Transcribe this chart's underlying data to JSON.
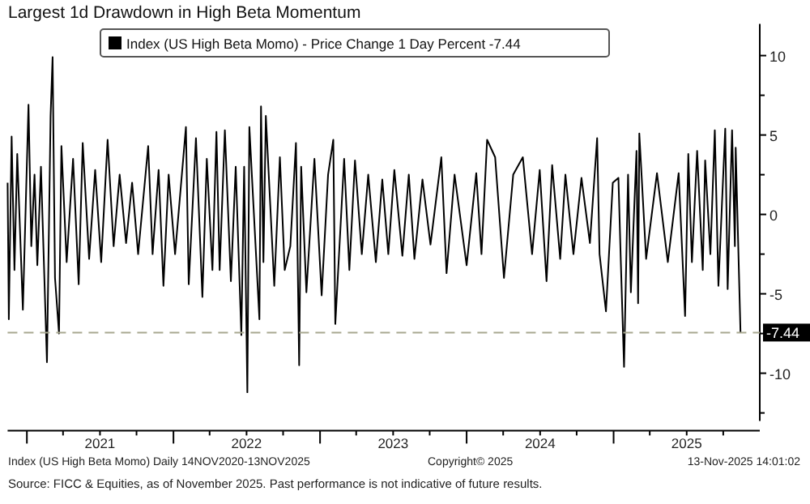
{
  "chart_data": {
    "type": "line",
    "title": "Largest 1d Drawdown in High Beta Momentum",
    "legend": "top left",
    "grid": false,
    "xlim": [
      "2020-11-14",
      "2025-12-31"
    ],
    "xticks": [
      {
        "value": "2021-01-01",
        "label": null
      },
      {
        "value": "2021-04-01",
        "label": null
      },
      {
        "value": "2021-07-02",
        "label": "2021"
      },
      {
        "value": "2021-10-01",
        "label": null
      },
      {
        "value": "2022-01-01",
        "label": null
      },
      {
        "value": "2022-04-01",
        "label": null
      },
      {
        "value": "2022-07-02",
        "label": "2022"
      },
      {
        "value": "2022-10-01",
        "label": null
      },
      {
        "value": "2023-01-01",
        "label": null
      },
      {
        "value": "2023-04-01",
        "label": null
      },
      {
        "value": "2023-07-02",
        "label": "2023"
      },
      {
        "value": "2023-10-01",
        "label": null
      },
      {
        "value": "2024-01-01",
        "label": null
      },
      {
        "value": "2024-04-01",
        "label": null
      },
      {
        "value": "2024-07-02",
        "label": "2024"
      },
      {
        "value": "2024-10-01",
        "label": null
      },
      {
        "value": "2025-01-01",
        "label": null
      },
      {
        "value": "2025-04-01",
        "label": null
      },
      {
        "value": "2025-07-02",
        "label": "2025"
      },
      {
        "value": "2025-10-01",
        "label": null
      }
    ],
    "ylim": [
      -13,
      12
    ],
    "yticks": [
      {
        "value": -12.5,
        "label": null
      },
      -10,
      {
        "value": -7.5,
        "label": null
      },
      -5,
      {
        "value": -2.5,
        "label": null
      },
      0,
      {
        "value": 2.5,
        "label": null
      },
      5,
      {
        "value": 7.5,
        "label": null
      },
      10
    ],
    "ref_lines": [
      {
        "axis": "y",
        "value": -7.44,
        "label": "-7.44",
        "color": "#a8a890",
        "line_style": "dashed"
      }
    ],
    "annotations": [
      "Index (US High Beta Momo) Daily 14NOV2020-13NOV2025",
      "Copyright© 2025",
      "13-Nov-2025 14:01:02",
      "Source: FICC & Equities, as of November 2025. Past performance is not indicative of future results."
    ],
    "series": [
      {
        "name": "Index (US High Beta Momo) - Price Change 1 Day Percent -7.44",
        "color": "#000000",
        "x": [
          "2020-11-14",
          "2020-11-17",
          "2020-11-24",
          "2020-12-01",
          "2020-12-08",
          "2020-12-22",
          "2021-01-05",
          "2021-01-12",
          "2021-01-20",
          "2021-01-27",
          "2021-02-05",
          "2021-02-20",
          "2021-03-01",
          "2021-03-06",
          "2021-03-12",
          "2021-03-22",
          "2021-03-28",
          "2021-04-10",
          "2021-04-26",
          "2021-05-10",
          "2021-05-20",
          "2021-06-05",
          "2021-06-20",
          "2021-07-05",
          "2021-07-21",
          "2021-08-05",
          "2021-08-20",
          "2021-09-05",
          "2021-09-20",
          "2021-10-05",
          "2021-10-30",
          "2021-11-10",
          "2021-11-25",
          "2021-12-07",
          "2021-12-20",
          "2022-01-05",
          "2022-02-01",
          "2022-02-08",
          "2022-02-26",
          "2022-03-14",
          "2022-03-25",
          "2022-04-08",
          "2022-04-18",
          "2022-04-26",
          "2022-05-09",
          "2022-05-24",
          "2022-06-05",
          "2022-06-19",
          "2022-06-26",
          "2022-07-04",
          "2022-07-09",
          "2022-08-03",
          "2022-08-07",
          "2022-08-13",
          "2022-08-19",
          "2022-09-09",
          "2022-09-23",
          "2022-10-05",
          "2022-10-19",
          "2022-11-02",
          "2022-11-10",
          "2022-11-15",
          "2022-11-28",
          "2022-12-18",
          "2023-01-05",
          "2023-01-21",
          "2023-02-03",
          "2023-02-08",
          "2023-03-02",
          "2023-03-15",
          "2023-03-29",
          "2023-04-15",
          "2023-05-01",
          "2023-05-20",
          "2023-06-05",
          "2023-06-20",
          "2023-07-05",
          "2023-07-25",
          "2023-08-10",
          "2023-08-24",
          "2023-09-13",
          "2023-10-03",
          "2023-10-30",
          "2023-11-12",
          "2023-12-02",
          "2024-01-01",
          "2024-01-25",
          "2024-02-07",
          "2024-02-21",
          "2024-03-12",
          "2024-04-03",
          "2024-04-26",
          "2024-05-20",
          "2024-06-12",
          "2024-07-01",
          "2024-07-18",
          "2024-08-01",
          "2024-08-21",
          "2024-09-03",
          "2024-09-23",
          "2024-10-13",
          "2024-11-03",
          "2024-11-21",
          "2024-11-27",
          "2024-12-13",
          "2024-12-30",
          "2025-01-13",
          "2025-01-19",
          "2025-01-27",
          "2025-02-06",
          "2025-02-13",
          "2025-02-27",
          "2025-03-03",
          "2025-03-06",
          "2025-03-23",
          "2025-04-19",
          "2025-05-16",
          "2025-06-12",
          "2025-06-28",
          "2025-07-06",
          "2025-07-15",
          "2025-07-28",
          "2025-08-11",
          "2025-08-17",
          "2025-08-30",
          "2025-09-10",
          "2025-09-19",
          "2025-10-06",
          "2025-10-12",
          "2025-10-23",
          "2025-10-30",
          "2025-11-01",
          "2025-11-13"
        ],
        "values": [
          2.0,
          -6.6,
          4.9,
          -3.5,
          3.8,
          -6.0,
          6.9,
          -2.0,
          2.5,
          -3.2,
          3.0,
          -9.3,
          6.2,
          9.9,
          -4.0,
          -7.5,
          4.3,
          -3.0,
          3.5,
          -4.4,
          4.5,
          -2.8,
          2.8,
          -3.0,
          4.7,
          -2.0,
          2.5,
          -1.8,
          2.0,
          -2.5,
          4.3,
          -2.5,
          2.8,
          -4.5,
          2.5,
          -2.5,
          5.5,
          -4.4,
          4.8,
          -5.2,
          3.5,
          -3.5,
          5.2,
          -3.5,
          5.3,
          -4.2,
          3.0,
          -7.6,
          3.0,
          -11.2,
          5.5,
          -6.6,
          6.8,
          -3.0,
          6.2,
          -4.5,
          3.6,
          -3.5,
          -2.0,
          4.5,
          -9.5,
          3.0,
          -4.9,
          3.5,
          -5.1,
          2.5,
          4.7,
          -6.9,
          3.5,
          -3.5,
          3.4,
          -2.5,
          2.5,
          -3.0,
          2.2,
          -2.5,
          2.8,
          -2.6,
          2.5,
          -2.8,
          2.2,
          -1.9,
          3.6,
          -3.7,
          2.5,
          -3.2,
          2.6,
          -2.5,
          4.7,
          3.6,
          -4.0,
          2.5,
          3.6,
          -2.5,
          2.8,
          -4.2,
          3.1,
          -2.8,
          2.5,
          -2.5,
          2.3,
          -1.8,
          4.8,
          -2.5,
          -6.1,
          2.0,
          2.3,
          -3.0,
          -9.6,
          2.5,
          -4.9,
          4.0,
          -5.6,
          5.1,
          -2.8,
          2.6,
          -3.0,
          2.6,
          -6.4,
          3.8,
          -3.0,
          4.0,
          -3.5,
          3.4,
          -2.5,
          5.3,
          -4.5,
          5.4,
          -4.7,
          5.3,
          -2.0,
          4.2,
          -7.44
        ]
      }
    ]
  }
}
